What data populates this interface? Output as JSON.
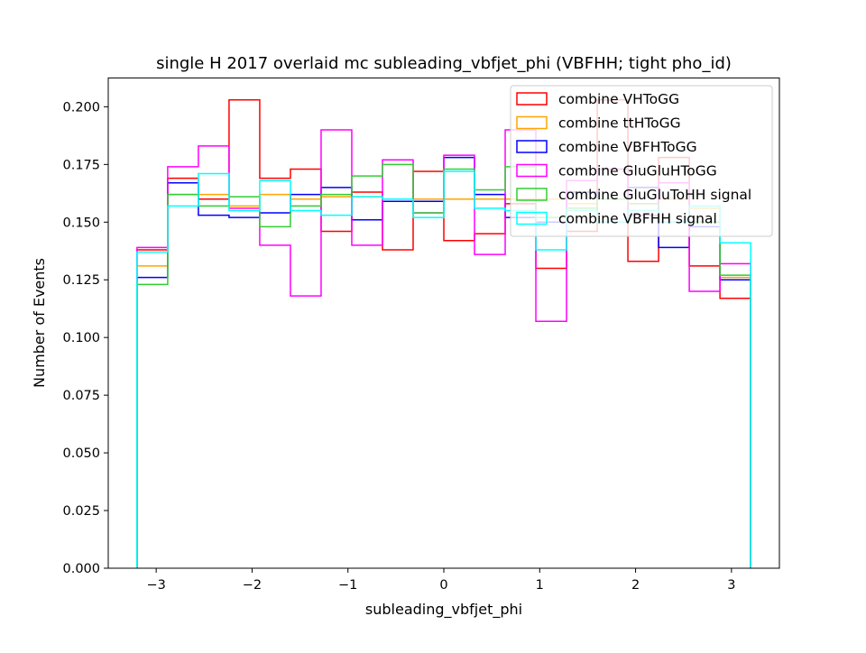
{
  "chart_data": {
    "type": "histogram-step",
    "title": "single H 2017 overlaid mc subleading_vbfjet_phi (VBFHH; tight pho_id)",
    "xlabel": "subleading_vbfjet_phi",
    "ylabel": "Number of Events",
    "xlim": [
      -3.5,
      3.5
    ],
    "ylim": [
      0,
      0.2125
    ],
    "x_ticks": [
      -3,
      -2,
      -1,
      0,
      1,
      2,
      3
    ],
    "x_tick_labels": [
      "−3",
      "−2",
      "−1",
      "0",
      "1",
      "2",
      "3"
    ],
    "y_ticks": [
      0.0,
      0.025,
      0.05,
      0.075,
      0.1,
      0.125,
      0.15,
      0.175,
      0.2
    ],
    "y_tick_labels": [
      "0.000",
      "0.025",
      "0.050",
      "0.075",
      "0.100",
      "0.125",
      "0.150",
      "0.175",
      "0.200"
    ],
    "grid": false,
    "legend_position": "top-right",
    "bin_edges": [
      -3.2,
      -2.88,
      -2.56,
      -2.24,
      -1.92,
      -1.6,
      -1.28,
      -0.96,
      -0.64,
      -0.32,
      0.0,
      0.32,
      0.64,
      0.96,
      1.28,
      1.6,
      1.92,
      2.24,
      2.56,
      2.88,
      3.2
    ],
    "series": [
      {
        "name": "combine VHToGG",
        "color": "#ff0000",
        "values": [
          0.138,
          0.169,
          0.16,
          0.203,
          0.169,
          0.173,
          0.146,
          0.163,
          0.138,
          0.172,
          0.142,
          0.145,
          0.158,
          0.13,
          0.146,
          0.203,
          0.133,
          0.178,
          0.131,
          0.117
        ]
      },
      {
        "name": "combine ttHToGG",
        "color": "#ffa500",
        "values": [
          0.131,
          0.162,
          0.162,
          0.157,
          0.162,
          0.16,
          0.161,
          0.161,
          0.16,
          0.16,
          0.16,
          0.16,
          0.16,
          0.16,
          0.158,
          0.16,
          0.158,
          0.16,
          0.156,
          0.126
        ]
      },
      {
        "name": "combine VBFHToGG",
        "color": "#0000ff",
        "values": [
          0.126,
          0.167,
          0.153,
          0.152,
          0.154,
          0.162,
          0.165,
          0.151,
          0.159,
          0.159,
          0.178,
          0.162,
          0.152,
          0.15,
          0.163,
          0.16,
          0.165,
          0.139,
          0.148,
          0.125
        ]
      },
      {
        "name": "combine GluGluHToGG",
        "color": "#ff00ff",
        "values": [
          0.139,
          0.174,
          0.183,
          0.156,
          0.14,
          0.118,
          0.19,
          0.14,
          0.177,
          0.154,
          0.179,
          0.136,
          0.19,
          0.107,
          0.168,
          0.173,
          0.153,
          0.167,
          0.12,
          0.132
        ]
      },
      {
        "name": "combine GluGluToHH signal",
        "color": "#32cd32",
        "values": [
          0.123,
          0.162,
          0.157,
          0.161,
          0.148,
          0.157,
          0.162,
          0.17,
          0.175,
          0.154,
          0.173,
          0.164,
          0.174,
          0.152,
          0.156,
          0.16,
          0.158,
          0.15,
          0.15,
          0.127
        ]
      },
      {
        "name": "combine VBFHH signal",
        "color": "#00ffff",
        "values": [
          0.137,
          0.157,
          0.171,
          0.155,
          0.168,
          0.155,
          0.153,
          0.161,
          0.16,
          0.152,
          0.172,
          0.156,
          0.155,
          0.138,
          0.155,
          0.15,
          0.155,
          0.15,
          0.157,
          0.141
        ]
      }
    ]
  }
}
